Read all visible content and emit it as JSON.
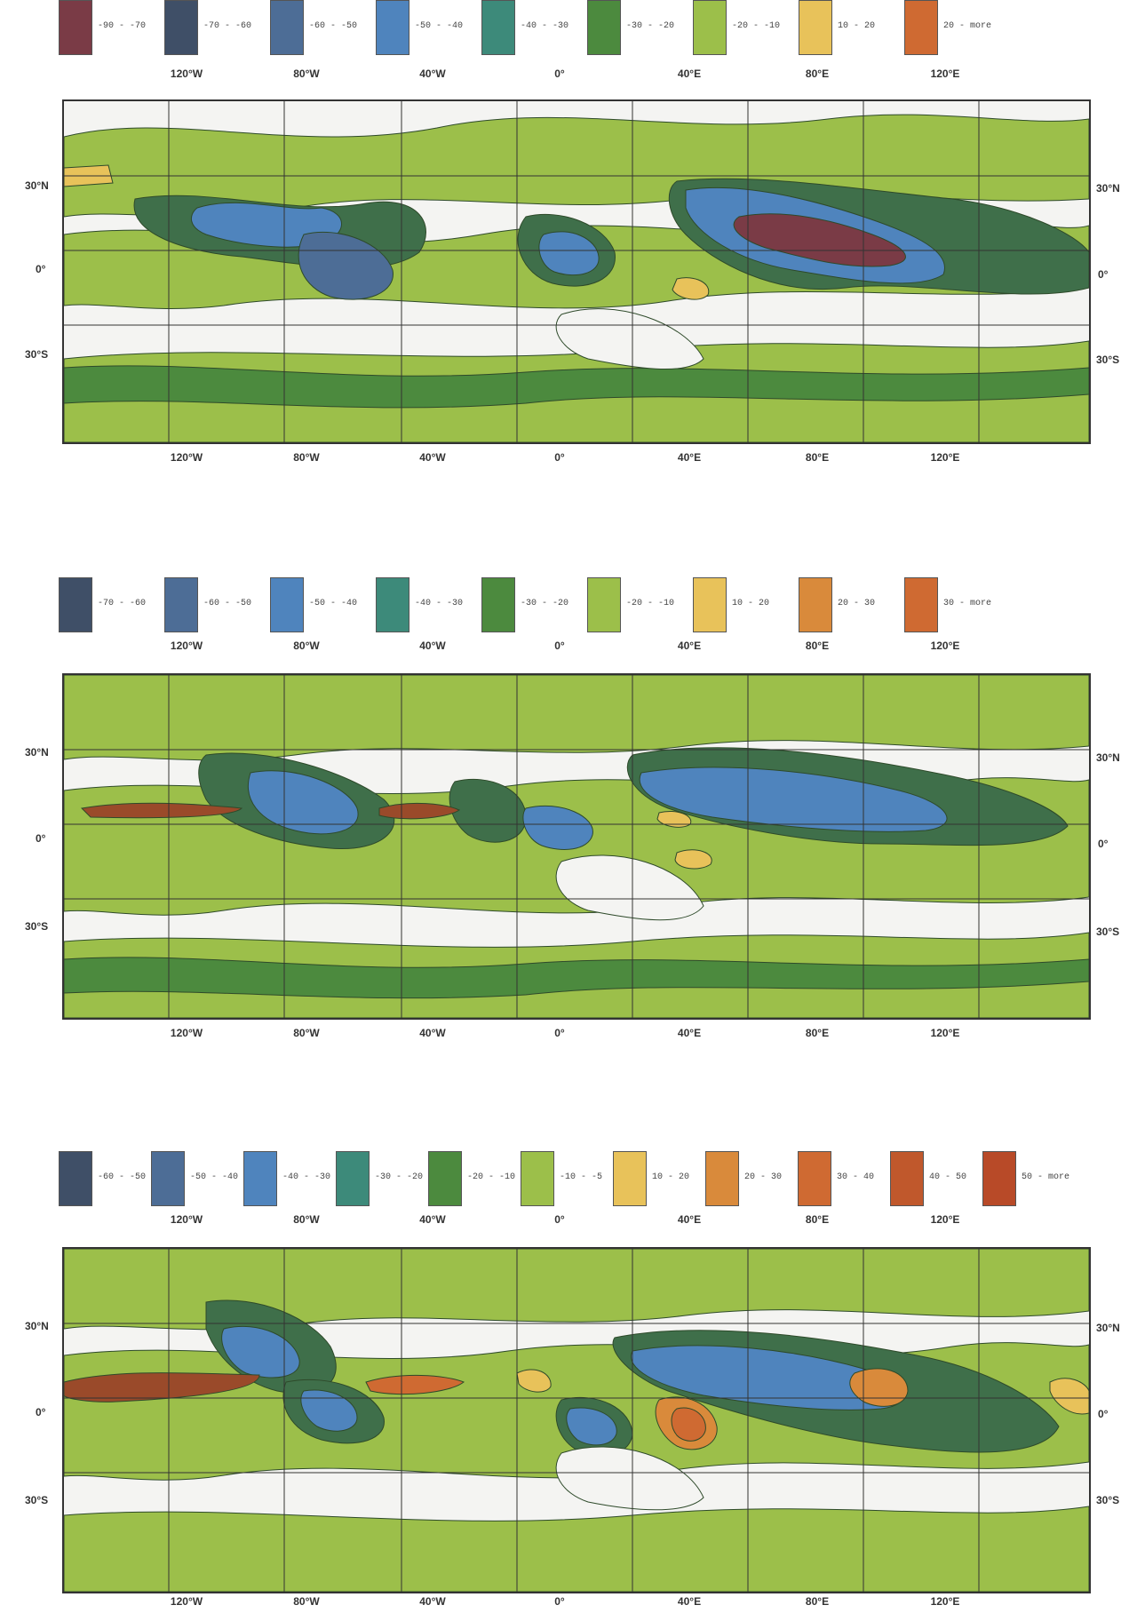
{
  "colors": {
    "ocean_white": "#f4f4f2",
    "light_green": "#9cbf4a",
    "mid_green": "#4c8a3e",
    "dark_green": "#3f6f4a",
    "teal": "#3d8a7a",
    "blue": "#4f84bd",
    "slate_blue": "#4d6d96",
    "dark_slate": "#3f4f67",
    "maroon": "#7a3b46",
    "yellow": "#e8c25a",
    "orange": "#d98a3b",
    "red_orange": "#cf6a32",
    "brown": "#9a4a2a",
    "grid": "#333333"
  },
  "axes": {
    "lon_labels": [
      "120°W",
      "80°W",
      "40°W",
      "0°",
      "40°E",
      "80°E",
      "120°E"
    ],
    "lat_labels_left": [
      "30°N",
      "0°",
      "30°S"
    ],
    "lat_labels_right": [
      "30°N",
      "0°",
      "30°S"
    ]
  },
  "panels": [
    {
      "legend": [
        {
          "color": "#7a3b46",
          "label": "-90 - -70"
        },
        {
          "color": "#3f4f67",
          "label": "-70 - -60"
        },
        {
          "color": "#4d6d96",
          "label": "-60 - -50"
        },
        {
          "color": "#4f84bd",
          "label": "-50 - -40"
        },
        {
          "color": "#3d8a7a",
          "label": "-40 - -30"
        },
        {
          "color": "#4c8a3e",
          "label": "-30 - -20"
        },
        {
          "color": "#9cbf4a",
          "label": "-20 - -10"
        },
        {
          "color": "#e8c25a",
          "label": "10 - 20"
        },
        {
          "color": "#cf6a32",
          "label": "20 - more"
        }
      ]
    },
    {
      "legend": [
        {
          "color": "#3f4f67",
          "label": "-70 - -60"
        },
        {
          "color": "#4d6d96",
          "label": "-60 - -50"
        },
        {
          "color": "#4f84bd",
          "label": "-50 - -40"
        },
        {
          "color": "#3d8a7a",
          "label": "-40 - -30"
        },
        {
          "color": "#4c8a3e",
          "label": "-30 - -20"
        },
        {
          "color": "#9cbf4a",
          "label": "-20 - -10"
        },
        {
          "color": "#e8c25a",
          "label": "10 - 20"
        },
        {
          "color": "#d98a3b",
          "label": "20 - 30"
        },
        {
          "color": "#cf6a32",
          "label": "30 - more"
        }
      ]
    },
    {
      "legend": [
        {
          "color": "#3f4f67",
          "label": "-60 - -50"
        },
        {
          "color": "#4d6d96",
          "label": "-50 - -40"
        },
        {
          "color": "#4f84bd",
          "label": "-40 - -30"
        },
        {
          "color": "#3d8a7a",
          "label": "-30 - -20"
        },
        {
          "color": "#4c8a3e",
          "label": "-20 - -10"
        },
        {
          "color": "#9cbf4a",
          "label": "-10 - -5"
        },
        {
          "color": "#e8c25a",
          "label": "10 - 20"
        },
        {
          "color": "#d98a3b",
          "label": "20 - 30"
        },
        {
          "color": "#cf6a32",
          "label": "30 - 40"
        },
        {
          "color": "#c0582c",
          "label": "40 - 50"
        },
        {
          "color": "#b84a28",
          "label": "50 - more"
        }
      ]
    }
  ]
}
